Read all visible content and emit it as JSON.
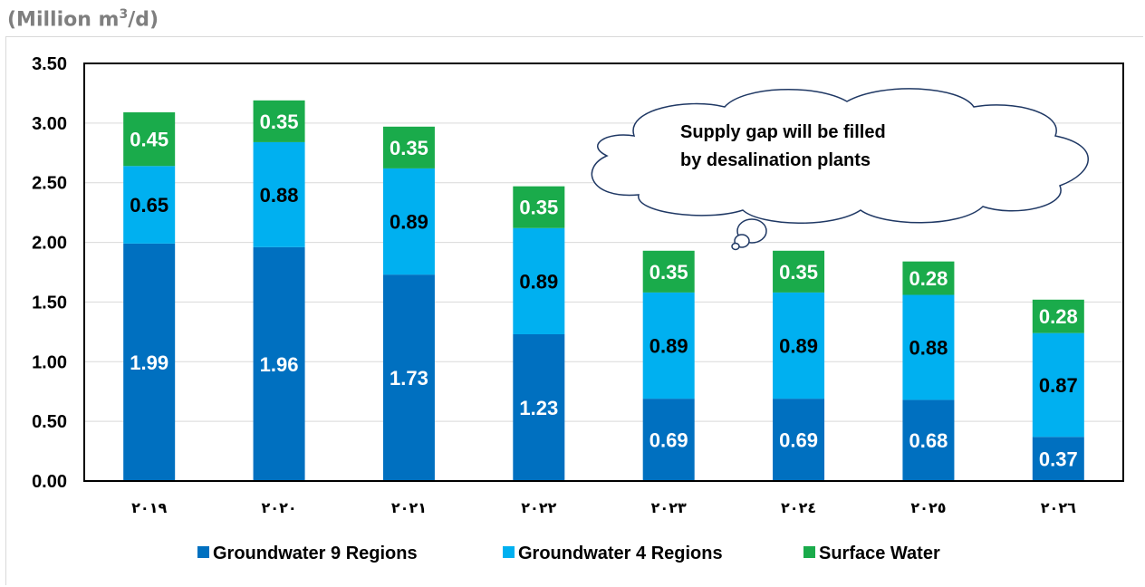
{
  "unit_label": {
    "text_main": "(Million m",
    "sup": "3",
    "text_end": "/d)"
  },
  "callout": {
    "line1": "Supply gap will be filled",
    "line2": "by desalination plants"
  },
  "colors": {
    "gw9": "#0070c0",
    "gw4": "#00b0f0",
    "surface": "#1aab4b",
    "white_text": "#ffffff",
    "black_text": "#000000"
  },
  "chart_data": {
    "type": "bar",
    "stacked": true,
    "categories": [
      "٢٠١٩",
      "٢٠٢٠",
      "٢٠٢١",
      "٢٠٢٢",
      "٢٠٢٣",
      "٢٠٢٤",
      "٢٠٢٥",
      "٢٠٢٦"
    ],
    "series": [
      {
        "name": "Groundwater 9 Regions",
        "values": [
          1.99,
          1.96,
          1.73,
          1.23,
          0.69,
          0.69,
          0.68,
          0.37
        ],
        "label_color": "white"
      },
      {
        "name": "Groundwater 4 Regions",
        "values": [
          0.65,
          0.88,
          0.89,
          0.89,
          0.89,
          0.89,
          0.88,
          0.87
        ],
        "label_color": "black"
      },
      {
        "name": "Surface Water",
        "values": [
          0.45,
          0.35,
          0.35,
          0.35,
          0.35,
          0.35,
          0.28,
          0.28
        ],
        "label_color": "white"
      }
    ],
    "yticks": [
      "0.00",
      "0.50",
      "1.00",
      "1.50",
      "2.00",
      "2.50",
      "3.00",
      "3.50"
    ],
    "ylim": [
      0,
      3.5
    ],
    "grid": true,
    "legend_position": "bottom"
  }
}
